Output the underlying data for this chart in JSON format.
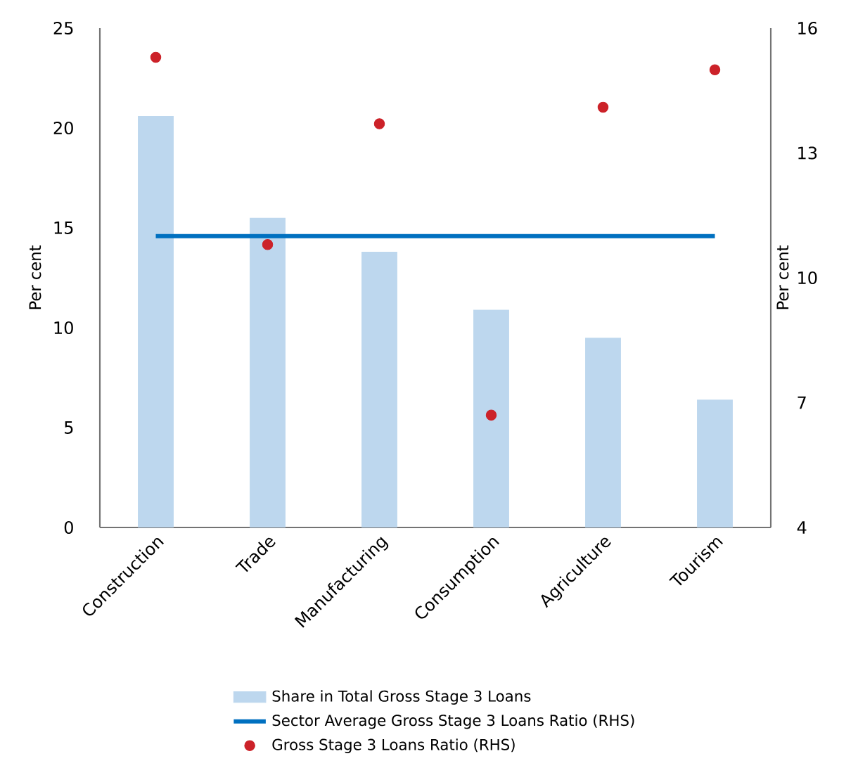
{
  "chart_data": {
    "type": "bar",
    "categories": [
      "Construction",
      "Trade",
      "Manufacturing",
      "Consumption",
      "Agriculture",
      "Tourism"
    ],
    "series": [
      {
        "name": "Share in Total Gross Stage 3 Loans",
        "color": "#bdd7ee",
        "values": [
          20.6,
          15.5,
          13.8,
          10.9,
          9.5,
          6.4
        ]
      },
      {
        "name": "Sector Average Gross Stage 3 Loans Ratio (RHS)",
        "type": "line",
        "axis": "y2",
        "color": "#0070c0",
        "line_style": "solid",
        "marker": "none",
        "values": [
          11,
          11,
          11,
          11,
          11,
          11
        ]
      },
      {
        "name": "Gross Stage 3 Loans Ratio (RHS)",
        "type": "scatter",
        "axis": "y2",
        "color": "#cc2229",
        "marker": "circle",
        "values": [
          15.3,
          10.8,
          13.7,
          6.7,
          14.1,
          15.0
        ]
      }
    ],
    "ylabel": "Per cent",
    "y2label": "Per cent",
    "ylim": [
      0,
      25
    ],
    "yticks": [
      0,
      5,
      10,
      15,
      20,
      25
    ],
    "y2lim": [
      4,
      16
    ],
    "y2ticks": [
      4,
      7,
      10,
      13,
      16
    ],
    "legend": "bottom"
  }
}
